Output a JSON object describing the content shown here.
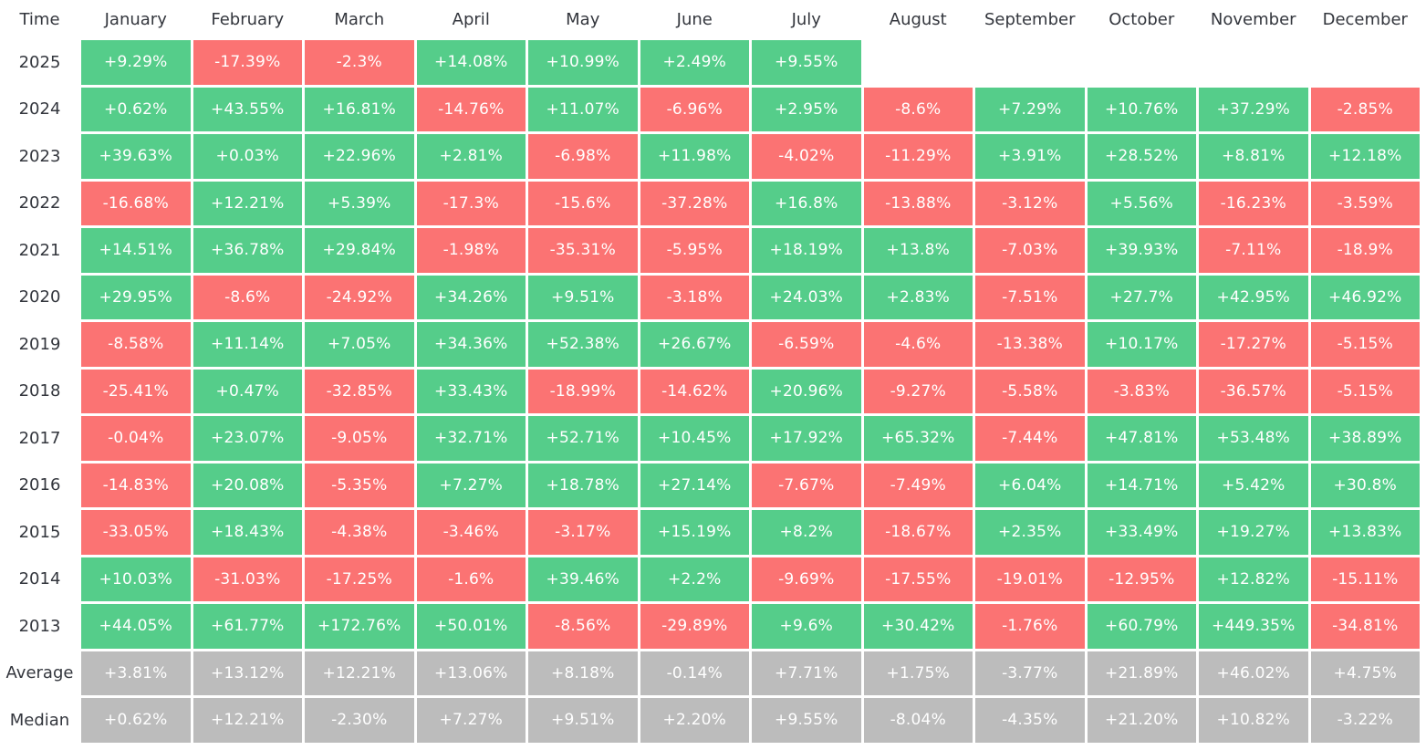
{
  "colors": {
    "positive": "#55cd8a",
    "negative": "#fb7373",
    "summary": "#bcbcbc",
    "text": "#ffffff"
  },
  "chart_data": {
    "type": "heatmap",
    "corner_label": "Time",
    "columns": [
      "January",
      "February",
      "March",
      "April",
      "May",
      "June",
      "July",
      "August",
      "September",
      "October",
      "November",
      "December"
    ],
    "rows": [
      {
        "label": "2025",
        "values": [
          "+9.29%",
          "-17.39%",
          "-2.3%",
          "+14.08%",
          "+10.99%",
          "+2.49%",
          "+9.55%",
          "",
          "",
          "",
          "",
          ""
        ]
      },
      {
        "label": "2024",
        "values": [
          "+0.62%",
          "+43.55%",
          "+16.81%",
          "-14.76%",
          "+11.07%",
          "-6.96%",
          "+2.95%",
          "-8.6%",
          "+7.29%",
          "+10.76%",
          "+37.29%",
          "-2.85%"
        ]
      },
      {
        "label": "2023",
        "values": [
          "+39.63%",
          "+0.03%",
          "+22.96%",
          "+2.81%",
          "-6.98%",
          "+11.98%",
          "-4.02%",
          "-11.29%",
          "+3.91%",
          "+28.52%",
          "+8.81%",
          "+12.18%"
        ]
      },
      {
        "label": "2022",
        "values": [
          "-16.68%",
          "+12.21%",
          "+5.39%",
          "-17.3%",
          "-15.6%",
          "-37.28%",
          "+16.8%",
          "-13.88%",
          "-3.12%",
          "+5.56%",
          "-16.23%",
          "-3.59%"
        ]
      },
      {
        "label": "2021",
        "values": [
          "+14.51%",
          "+36.78%",
          "+29.84%",
          "-1.98%",
          "-35.31%",
          "-5.95%",
          "+18.19%",
          "+13.8%",
          "-7.03%",
          "+39.93%",
          "-7.11%",
          "-18.9%"
        ]
      },
      {
        "label": "2020",
        "values": [
          "+29.95%",
          "-8.6%",
          "-24.92%",
          "+34.26%",
          "+9.51%",
          "-3.18%",
          "+24.03%",
          "+2.83%",
          "-7.51%",
          "+27.7%",
          "+42.95%",
          "+46.92%"
        ]
      },
      {
        "label": "2019",
        "values": [
          "-8.58%",
          "+11.14%",
          "+7.05%",
          "+34.36%",
          "+52.38%",
          "+26.67%",
          "-6.59%",
          "-4.6%",
          "-13.38%",
          "+10.17%",
          "-17.27%",
          "-5.15%"
        ]
      },
      {
        "label": "2018",
        "values": [
          "-25.41%",
          "+0.47%",
          "-32.85%",
          "+33.43%",
          "-18.99%",
          "-14.62%",
          "+20.96%",
          "-9.27%",
          "-5.58%",
          "-3.83%",
          "-36.57%",
          "-5.15%"
        ]
      },
      {
        "label": "2017",
        "values": [
          "-0.04%",
          "+23.07%",
          "-9.05%",
          "+32.71%",
          "+52.71%",
          "+10.45%",
          "+17.92%",
          "+65.32%",
          "-7.44%",
          "+47.81%",
          "+53.48%",
          "+38.89%"
        ]
      },
      {
        "label": "2016",
        "values": [
          "-14.83%",
          "+20.08%",
          "-5.35%",
          "+7.27%",
          "+18.78%",
          "+27.14%",
          "-7.67%",
          "-7.49%",
          "+6.04%",
          "+14.71%",
          "+5.42%",
          "+30.8%"
        ]
      },
      {
        "label": "2015",
        "values": [
          "-33.05%",
          "+18.43%",
          "-4.38%",
          "-3.46%",
          "-3.17%",
          "+15.19%",
          "+8.2%",
          "-18.67%",
          "+2.35%",
          "+33.49%",
          "+19.27%",
          "+13.83%"
        ]
      },
      {
        "label": "2014",
        "values": [
          "+10.03%",
          "-31.03%",
          "-17.25%",
          "-1.6%",
          "+39.46%",
          "+2.2%",
          "-9.69%",
          "-17.55%",
          "-19.01%",
          "-12.95%",
          "+12.82%",
          "-15.11%"
        ]
      },
      {
        "label": "2013",
        "values": [
          "+44.05%",
          "+61.77%",
          "+172.76%",
          "+50.01%",
          "-8.56%",
          "-29.89%",
          "+9.6%",
          "+30.42%",
          "-1.76%",
          "+60.79%",
          "+449.35%",
          "-34.81%"
        ]
      }
    ],
    "summary_rows": [
      {
        "label": "Average",
        "values": [
          "+3.81%",
          "+13.12%",
          "+12.21%",
          "+13.06%",
          "+8.18%",
          "-0.14%",
          "+7.71%",
          "+1.75%",
          "-3.77%",
          "+21.89%",
          "+46.02%",
          "+4.75%"
        ]
      },
      {
        "label": "Median",
        "values": [
          "+0.62%",
          "+12.21%",
          "-2.30%",
          "+7.27%",
          "+9.51%",
          "+2.20%",
          "+9.55%",
          "-8.04%",
          "-4.35%",
          "+21.20%",
          "+10.82%",
          "-3.22%"
        ]
      }
    ]
  }
}
